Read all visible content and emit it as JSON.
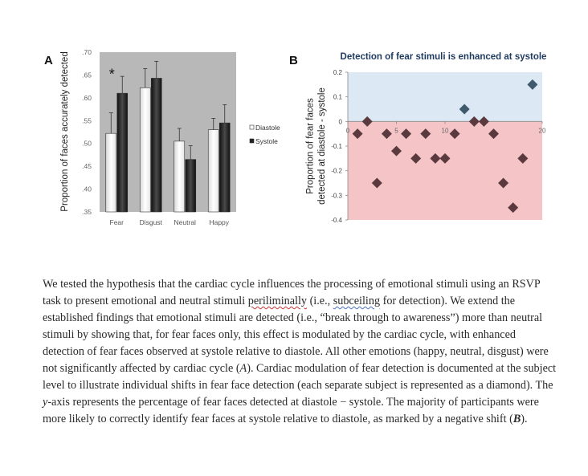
{
  "chart_data": [
    {
      "panel_label": "A",
      "type": "bar",
      "ylabel": "Proportion of faces accurately detected",
      "ylim": [
        0.35,
        0.7
      ],
      "yticks": [
        ".35",
        ".40",
        ".45",
        ".50",
        ".55",
        ".60",
        ".65",
        ".70"
      ],
      "ytick_values": [
        0.35,
        0.4,
        0.45,
        0.5,
        0.55,
        0.6,
        0.65,
        0.7
      ],
      "categories": [
        "Fear",
        "Disgust",
        "Neutral",
        "Happy"
      ],
      "series": [
        {
          "name": "Diastole",
          "values": [
            0.522,
            0.622,
            0.505,
            0.53
          ],
          "errors": [
            0.045,
            0.042,
            0.028,
            0.025
          ],
          "color": "#ffffff"
        },
        {
          "name": "Systole",
          "values": [
            0.61,
            0.643,
            0.465,
            0.545
          ],
          "errors": [
            0.037,
            0.037,
            0.03,
            0.04
          ],
          "color": "#222222"
        }
      ],
      "annotation": "*",
      "legend_position": "right",
      "background": "#b8b8b8"
    },
    {
      "panel_label": "B",
      "type": "scatter",
      "title": "Detection of fear stimuli is enhanced at systole",
      "ylabel": "Proportion of fear faces detected at diastole - systole",
      "xlim": [
        0,
        20
      ],
      "ylim": [
        -0.4,
        0.2
      ],
      "xticks": [
        "0",
        "5",
        "10",
        "20"
      ],
      "xtick_values": [
        0,
        5,
        10,
        20
      ],
      "yticks": [
        "0.2",
        "0.1",
        "0",
        "-0.1",
        "-0.2",
        "-0.3",
        "-0.4"
      ],
      "ytick_values": [
        0.2,
        0.1,
        0,
        -0.1,
        -0.2,
        -0.3,
        -0.4
      ],
      "points": [
        {
          "x": 1,
          "y": -0.05
        },
        {
          "x": 2,
          "y": 0
        },
        {
          "x": 3,
          "y": -0.25
        },
        {
          "x": 4,
          "y": -0.05
        },
        {
          "x": 5,
          "y": -0.12
        },
        {
          "x": 6,
          "y": -0.05
        },
        {
          "x": 7,
          "y": -0.15
        },
        {
          "x": 8,
          "y": -0.05
        },
        {
          "x": 9,
          "y": -0.15
        },
        {
          "x": 10,
          "y": -0.15
        },
        {
          "x": 11,
          "y": -0.05
        },
        {
          "x": 12,
          "y": 0.05
        },
        {
          "x": 13,
          "y": 0
        },
        {
          "x": 14,
          "y": 0
        },
        {
          "x": 15,
          "y": -0.05
        },
        {
          "x": 16,
          "y": -0.25
        },
        {
          "x": 17,
          "y": -0.35
        },
        {
          "x": 18,
          "y": -0.15
        },
        {
          "x": 19,
          "y": 0.15
        }
      ],
      "positive_color": "#dce8f3",
      "negative_color": "#f4c4c6",
      "marker_negative_color": "#5a3a3e",
      "marker_positive_color": "#3e5a6c"
    }
  ],
  "caption": {
    "parts": [
      {
        "text": "We tested the hypothesis that the cardiac cycle influences the processing of emotional stimuli using an RSVP task to present emotional and neutral stimuli ",
        "style": ""
      },
      {
        "text": "periliminally",
        "style": "squig"
      },
      {
        "text": " (i.e., ",
        "style": ""
      },
      {
        "text": "subceiling",
        "style": "squig-blue"
      },
      {
        "text": " for detection). We extend the established findings that emotional stimuli are detected (i.e., “break through to awareness”) more than neutral stimuli by showing that, for fear faces only, this effect is modulated by the cardiac cycle, with enhanced detection of fear faces observed at systole relative to diastole. All other emotions (happy, neutral, disgust) were not significantly affected by cardiac cycle (",
        "style": ""
      },
      {
        "text": "A",
        "style": "ital"
      },
      {
        "text": "). Cardiac modulation of fear detection is documented at the subject level to illustrate individual shifts in fear face detection (each separate subject is represented as a diamond). The ",
        "style": ""
      },
      {
        "text": "y",
        "style": "ital"
      },
      {
        "text": "-axis represents the percentage of fear faces detected at diastole − systole. The majority of participants were more likely to correctly identify fear faces at systole relative to diastole, as marked by a negative shift (",
        "style": ""
      },
      {
        "text": "B",
        "style": "boldital"
      },
      {
        "text": ").",
        "style": ""
      }
    ]
  }
}
